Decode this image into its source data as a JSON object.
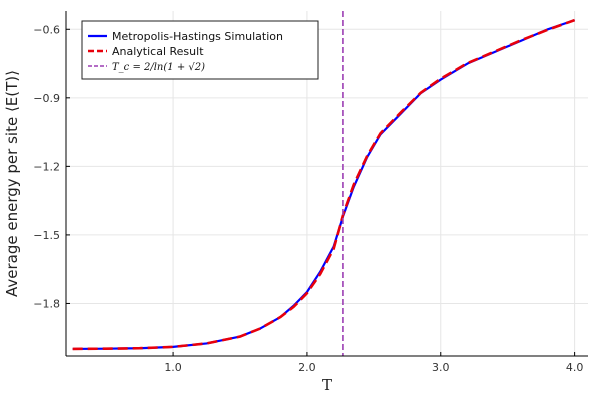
{
  "chart_data": {
    "type": "line",
    "title": "",
    "xlabel": "T",
    "ylabel": "Average energy per site ⟨E(T)⟩",
    "xlim": [
      0.2,
      4.1
    ],
    "ylim": [
      -2.03,
      -0.52
    ],
    "xticks": [
      1.0,
      2.0,
      3.0,
      4.0
    ],
    "xtick_labels": [
      "1.0",
      "2.0",
      "3.0",
      "4.0"
    ],
    "yticks": [
      -1.8,
      -1.5,
      -1.2,
      -0.9,
      -0.6
    ],
    "ytick_labels": [
      "−1.8",
      "−1.5",
      "−1.2",
      "−0.9",
      "−0.6"
    ],
    "grid": true,
    "legend_position": "top-left",
    "vline": {
      "x": 2.269,
      "name": "T_c = 2/ln(1 + √2)",
      "color": "#9b3db3"
    },
    "series": [
      {
        "name": "Metropolis-Hastings Simulation",
        "color": "#0000ff",
        "style": "solid",
        "x": [
          0.25,
          0.5,
          0.75,
          1.0,
          1.25,
          1.5,
          1.65,
          1.8,
          1.9,
          2.0,
          2.1,
          2.2,
          2.269,
          2.35,
          2.45,
          2.55,
          2.7,
          2.85,
          3.0,
          3.2,
          3.4,
          3.6,
          3.8,
          4.0
        ],
        "y": [
          -1.999,
          -1.998,
          -1.996,
          -1.99,
          -1.975,
          -1.945,
          -1.91,
          -1.86,
          -1.81,
          -1.75,
          -1.66,
          -1.55,
          -1.42,
          -1.29,
          -1.16,
          -1.06,
          -0.97,
          -0.88,
          -0.82,
          -0.75,
          -0.7,
          -0.65,
          -0.6,
          -0.56
        ]
      },
      {
        "name": "Analytical Result",
        "color": "#e8000b",
        "style": "dashed",
        "x": [
          0.25,
          0.5,
          0.75,
          1.0,
          1.25,
          1.5,
          1.65,
          1.8,
          1.9,
          2.0,
          2.1,
          2.2,
          2.269,
          2.35,
          2.45,
          2.55,
          2.7,
          2.85,
          3.0,
          3.2,
          3.4,
          3.6,
          3.8,
          4.0
        ],
        "y": [
          -1.999,
          -1.998,
          -1.996,
          -1.99,
          -1.975,
          -1.945,
          -1.91,
          -1.86,
          -1.815,
          -1.755,
          -1.67,
          -1.56,
          -1.414,
          -1.28,
          -1.155,
          -1.055,
          -0.965,
          -0.878,
          -0.816,
          -0.748,
          -0.698,
          -0.648,
          -0.602,
          -0.56
        ]
      }
    ]
  }
}
